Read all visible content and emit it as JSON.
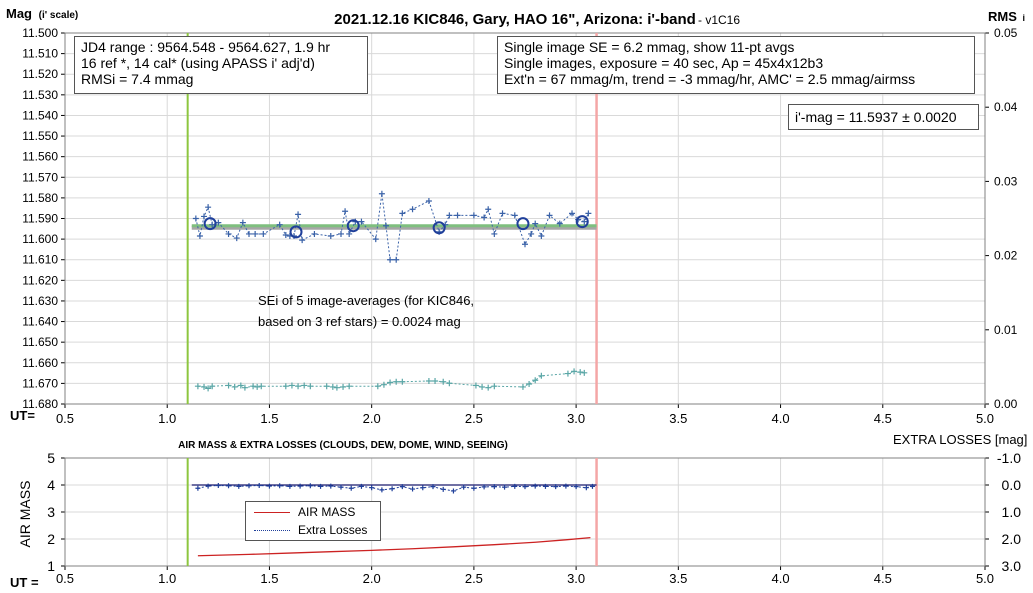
{
  "title": "2021.12.16 KIC846, Gary, HAO 16\", Arizona: i'-band",
  "version": "- v1C16",
  "top_panel": {
    "ylabel_left": "Mag",
    "ylabel_left_sub": "(i' scale)",
    "ylabel_right": "RMS",
    "ylabel_right_sub": "i",
    "xlabel_prefix": "UT=",
    "info_box": [
      "JD4 range : 9564.548 - 9564.627, 1.9  hr",
      "16 ref *, 14 cal* (using APASS i' adj'd)",
      "RMSi = 7.4 mmag"
    ],
    "stats_box": [
      "Single image SE = 6.2 mmag, show 11-pt avgs",
      "Single images, exposure = 40 sec, Ap = 45x4x12b3",
      "Ext'n = 67 mmag/m, trend = -3 mmag/hr, AMC' = 2.5 mmag/airmss"
    ],
    "result_box": "i'-mag = 11.5937 ± 0.0020",
    "sei_note": [
      "SEi of 5 image-averages (for KIC846,",
      "based on 3 ref stars) = 0.0024 mag"
    ]
  },
  "bottom_panel": {
    "title": "AIR MASS & EXTRA LOSSES (CLOUDS, DEW, DOME, WIND, SEEING)",
    "ylabel_left": "AIR MASS",
    "ylabel_right": "EXTRA LOSSES [mag]",
    "xlabel_prefix": "UT =",
    "legend": [
      "AIR MASS",
      "Extra Losses"
    ]
  },
  "colors": {
    "mag_points": "#3a62a8",
    "avg_circles": "#1f3f9a",
    "fit_line": "#7fbf7f",
    "gray_line": "#a6a6a6",
    "rms_points": "#5aa6a6",
    "start_line": "#8dc63f",
    "end_line": "#f4a6a6",
    "airmass": "#cc2222",
    "extra_losses": "#1f3f9a",
    "grid": "#d9d9d9"
  },
  "chart_data": [
    {
      "type": "scatter",
      "panel": "top",
      "xlim": [
        0.5,
        5.0
      ],
      "xticks": [
        0.5,
        1.0,
        1.5,
        2.0,
        2.5,
        3.0,
        3.5,
        4.0,
        4.5,
        5.0
      ],
      "ylim_left": [
        11.68,
        11.5
      ],
      "yticks_left": [
        11.5,
        11.51,
        11.52,
        11.53,
        11.54,
        11.55,
        11.56,
        11.57,
        11.58,
        11.59,
        11.6,
        11.61,
        11.62,
        11.63,
        11.64,
        11.65,
        11.66,
        11.67,
        11.68
      ],
      "ylim_right": [
        0.0,
        0.05
      ],
      "yticks_right": [
        0.0,
        0.01,
        0.02,
        0.03,
        0.04,
        0.05
      ],
      "vlines": {
        "start": 1.1,
        "end": 3.1
      },
      "fit": {
        "x": [
          1.12,
          3.1
        ],
        "y": 11.594
      },
      "series": [
        {
          "kind": "single_mags",
          "x": [
            1.14,
            1.16,
            1.18,
            1.2,
            1.22,
            1.25,
            1.3,
            1.34,
            1.37,
            1.4,
            1.43,
            1.47,
            1.55,
            1.58,
            1.6,
            1.62,
            1.64,
            1.66,
            1.72,
            1.8,
            1.85,
            1.87,
            1.89,
            1.92,
            1.95,
            2.02,
            2.05,
            2.07,
            2.09,
            2.12,
            2.15,
            2.2,
            2.28,
            2.33,
            2.36,
            2.38,
            2.42,
            2.5,
            2.55,
            2.57,
            2.6,
            2.64,
            2.7,
            2.75,
            2.78,
            2.8,
            2.83,
            2.87,
            2.92,
            2.98,
            3.01,
            3.04,
            3.06
          ],
          "y": [
            11.59,
            11.5985,
            11.589,
            11.5845,
            11.593,
            11.592,
            11.5975,
            11.5995,
            11.592,
            11.5975,
            11.5975,
            11.5975,
            11.593,
            11.598,
            11.5985,
            11.5985,
            11.588,
            11.6005,
            11.5975,
            11.5985,
            11.5975,
            11.5865,
            11.5975,
            11.5915,
            11.5915,
            11.6,
            11.578,
            11.5935,
            11.61,
            11.61,
            11.5875,
            11.5855,
            11.5815,
            11.5965,
            11.593,
            11.5885,
            11.5885,
            11.5885,
            11.5895,
            11.5855,
            11.5975,
            11.5875,
            11.5885,
            11.6025,
            11.5975,
            11.5925,
            11.5985,
            11.5885,
            11.5925,
            11.5875,
            11.5905,
            11.5915,
            11.5875
          ]
        },
        {
          "kind": "averages",
          "x": [
            1.21,
            1.63,
            1.91,
            2.33,
            2.74,
            3.03
          ],
          "y": [
            11.5925,
            11.5965,
            11.5935,
            11.5945,
            11.5925,
            11.5915
          ]
        },
        {
          "kind": "rms_i",
          "x": [
            1.15,
            1.18,
            1.2,
            1.22,
            1.3,
            1.33,
            1.36,
            1.38,
            1.42,
            1.44,
            1.46,
            1.58,
            1.61,
            1.64,
            1.67,
            1.7,
            1.78,
            1.81,
            1.83,
            1.86,
            1.89,
            2.03,
            2.06,
            2.09,
            2.12,
            2.15,
            2.28,
            2.31,
            2.35,
            2.38,
            2.51,
            2.54,
            2.57,
            2.6,
            2.74,
            2.77,
            2.8,
            2.83,
            2.96,
            2.99,
            3.02,
            3.04
          ],
          "y": [
            0.0024,
            0.0023,
            0.0021,
            0.0024,
            0.0025,
            0.0023,
            0.0025,
            0.0022,
            0.0024,
            0.0023,
            0.0024,
            0.0024,
            0.0025,
            0.0024,
            0.0025,
            0.0024,
            0.0024,
            0.0023,
            0.0022,
            0.0023,
            0.0024,
            0.0024,
            0.0026,
            0.0029,
            0.003,
            0.003,
            0.0031,
            0.0031,
            0.003,
            0.0028,
            0.0025,
            0.0023,
            0.0022,
            0.0024,
            0.0023,
            0.0027,
            0.0032,
            0.0038,
            0.0041,
            0.0044,
            0.0043,
            0.0042
          ]
        }
      ]
    },
    {
      "type": "line",
      "panel": "bottom",
      "xlim": [
        0.5,
        5.0
      ],
      "xticks": [
        0.5,
        1.0,
        1.5,
        2.0,
        2.5,
        3.0,
        3.5,
        4.0,
        4.5,
        5.0
      ],
      "ylim_left": [
        1,
        5
      ],
      "yticks_left": [
        1,
        2,
        3,
        4,
        5
      ],
      "ylim_right": [
        3.0,
        -1.0
      ],
      "yticks_right": [
        "3.0",
        "2.0",
        "1.0",
        "0.0",
        "-1.0"
      ],
      "vlines": {
        "start": 1.1,
        "end": 3.1
      },
      "series": [
        {
          "name": "AIR MASS",
          "axis": "left",
          "x": [
            1.15,
            1.4,
            1.6,
            1.8,
            2.0,
            2.2,
            2.4,
            2.6,
            2.8,
            2.95,
            3.07
          ],
          "y": [
            1.38,
            1.43,
            1.48,
            1.53,
            1.58,
            1.64,
            1.71,
            1.79,
            1.88,
            1.97,
            2.05
          ]
        },
        {
          "name": "Extra Losses",
          "axis": "right",
          "x": [
            1.15,
            1.2,
            1.25,
            1.3,
            1.35,
            1.4,
            1.45,
            1.5,
            1.55,
            1.6,
            1.65,
            1.7,
            1.75,
            1.8,
            1.85,
            1.9,
            1.95,
            2.0,
            2.05,
            2.1,
            2.15,
            2.2,
            2.25,
            2.3,
            2.35,
            2.4,
            2.45,
            2.5,
            2.55,
            2.6,
            2.65,
            2.7,
            2.75,
            2.8,
            2.85,
            2.9,
            2.95,
            3.0,
            3.05,
            3.08
          ],
          "y": [
            0.12,
            0.04,
            0.02,
            0.03,
            0.05,
            0.03,
            0.02,
            0.04,
            0.03,
            0.05,
            0.04,
            0.03,
            0.05,
            0.04,
            0.08,
            0.12,
            0.05,
            0.1,
            0.18,
            0.14,
            0.06,
            0.15,
            0.1,
            0.06,
            0.16,
            0.22,
            0.08,
            0.12,
            0.07,
            0.06,
            0.08,
            0.05,
            0.06,
            0.04,
            0.05,
            0.06,
            0.04,
            0.06,
            0.1,
            0.05
          ]
        },
        {
          "kind": "zero_line",
          "axis": "right",
          "x": [
            1.12,
            3.1
          ],
          "y": [
            0.0,
            0.0
          ]
        }
      ]
    }
  ]
}
